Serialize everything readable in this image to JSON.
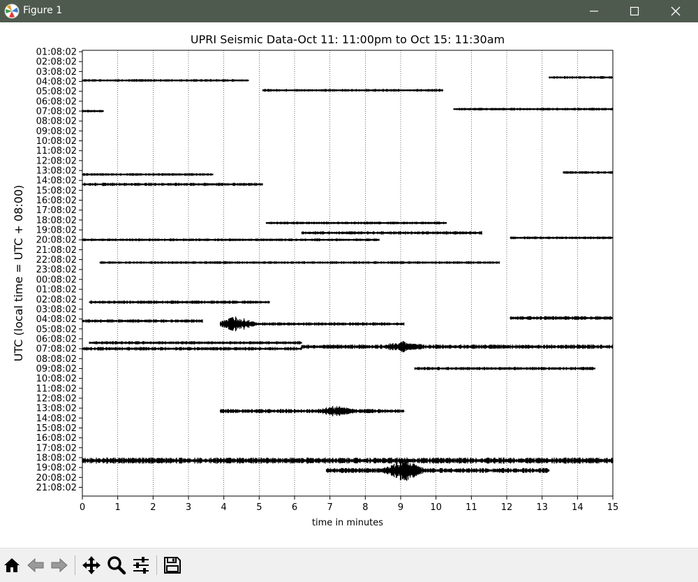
{
  "window": {
    "title": "Figure 1",
    "icons": [
      "matplotlib-logo-icon",
      "minimize-icon",
      "maximize-icon",
      "close-icon"
    ]
  },
  "toolbar": {
    "buttons": [
      {
        "name": "home-button",
        "icon": "home-icon"
      },
      {
        "name": "back-button",
        "icon": "left-arrow-icon"
      },
      {
        "name": "forward-button",
        "icon": "right-arrow-icon"
      },
      {
        "name": "pan-button",
        "icon": "move-arrows-icon"
      },
      {
        "name": "zoom-button",
        "icon": "magnifier-icon"
      },
      {
        "name": "configure-subplots-button",
        "icon": "sliders-icon"
      },
      {
        "name": "save-button",
        "icon": "floppy-disk-icon"
      }
    ]
  },
  "chart_data": {
    "type": "line",
    "title": "UPRI Seismic Data-Oct 11: 11:00pm to Oct 15: 11:30am",
    "xlabel": "time in minutes",
    "ylabel": "UTC (local time = UTC + 08:00)",
    "xlim": [
      0,
      15
    ],
    "xticks": [
      0,
      1,
      2,
      3,
      4,
      5,
      6,
      7,
      8,
      9,
      10,
      11,
      12,
      13,
      14,
      15
    ],
    "yticks": [
      "01:08:02",
      "02:08:02",
      "03:08:02",
      "04:08:02",
      "05:08:02",
      "06:08:02",
      "07:08:02",
      "08:08:02",
      "09:08:02",
      "10:08:02",
      "11:08:02",
      "12:08:02",
      "13:08:02",
      "14:08:02",
      "15:08:02",
      "16:08:02",
      "17:08:02",
      "18:08:02",
      "19:08:02",
      "20:08:02",
      "21:08:02",
      "22:08:02",
      "23:08:02",
      "00:08:02",
      "01:08:02",
      "02:08:02",
      "03:08:02",
      "04:08:02",
      "05:08:02",
      "06:08:02",
      "07:08:02",
      "08:08:02",
      "09:08:02",
      "10:08:02",
      "11:08:02",
      "12:08:02",
      "13:08:02",
      "14:08:02",
      "15:08:02",
      "16:08:02",
      "17:08:02",
      "18:08:02",
      "19:08:02",
      "20:08:02",
      "21:08:02"
    ],
    "grid": "x-dotted",
    "line_color": "#000000",
    "traces": [
      {
        "row": 2.6,
        "start": 13.2,
        "end": 15,
        "amp": 1
      },
      {
        "row": 2.9,
        "start": 0,
        "end": 4.7,
        "amp": 1
      },
      {
        "row": 3.9,
        "start": 5.1,
        "end": 10.2,
        "amp": 1
      },
      {
        "row": 6.0,
        "start": 0,
        "end": 0.6,
        "amp": 1
      },
      {
        "row": 5.8,
        "start": 10.5,
        "end": 15,
        "amp": 1
      },
      {
        "row": 12.2,
        "start": 13.6,
        "end": 15,
        "amp": 1
      },
      {
        "row": 12.4,
        "start": 0,
        "end": 3.7,
        "amp": 1
      },
      {
        "row": 13.4,
        "start": 0,
        "end": 5.1,
        "amp": 1.2
      },
      {
        "row": 17.3,
        "start": 5.2,
        "end": 10.3,
        "amp": 1
      },
      {
        "row": 18.3,
        "start": 6.2,
        "end": 11.3,
        "amp": 1.2
      },
      {
        "row": 18.8,
        "start": 12.1,
        "end": 15,
        "amp": 1
      },
      {
        "row": 19.0,
        "start": 0,
        "end": 8.4,
        "amp": 1
      },
      {
        "row": 21.3,
        "start": 0.5,
        "end": 11.8,
        "amp": 1
      },
      {
        "row": 25.3,
        "start": 0.2,
        "end": 5.3,
        "amp": 1.2
      },
      {
        "row": 26.9,
        "start": 12.1,
        "end": 15,
        "amp": 1.4
      },
      {
        "row": 27.2,
        "start": 0,
        "end": 3.4,
        "amp": 1.2
      },
      {
        "row": 27.5,
        "start": 3.9,
        "end": 9.1,
        "amp": 1.2,
        "burst": 4.35,
        "burst_amp": 8
      },
      {
        "row": 29.4,
        "start": 0.2,
        "end": 6.2,
        "amp": 1.2
      },
      {
        "row": 29.8,
        "start": 6.2,
        "end": 15,
        "amp": 1.6,
        "burst": 9.1,
        "burst_amp": 4
      },
      {
        "row": 30.0,
        "start": 0,
        "end": 6.2,
        "amp": 1.3
      },
      {
        "row": 32.0,
        "start": 9.4,
        "end": 14.5,
        "amp": 1.2
      },
      {
        "row": 36.3,
        "start": 3.9,
        "end": 9.1,
        "amp": 1.5,
        "burst": 7.2,
        "burst_amp": 4
      },
      {
        "row": 41.3,
        "start": 0,
        "end": 15,
        "amp": 2.2
      },
      {
        "row": 42.3,
        "start": 6.9,
        "end": 13.2,
        "amp": 1.8,
        "burst": 9.1,
        "burst_amp": 10
      }
    ]
  }
}
